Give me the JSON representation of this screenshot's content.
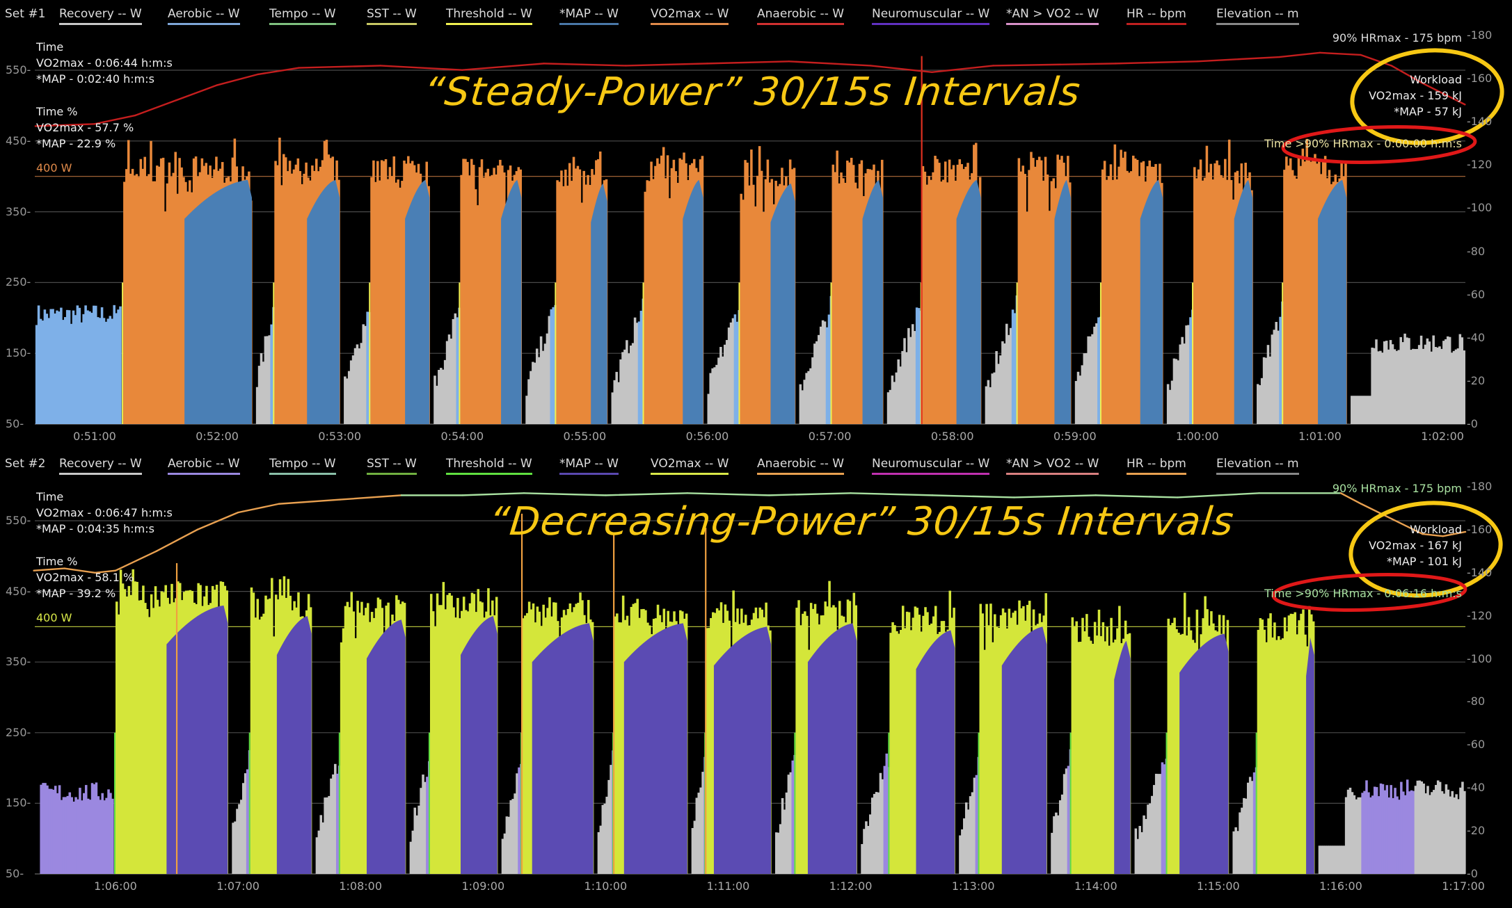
{
  "sets": [
    {
      "label": "Set #1",
      "legend": [
        {
          "label": "Recovery  -- W",
          "color": "#c8c8c8"
        },
        {
          "label": "Aerobic  -- W",
          "color": "#7ea6d8"
        },
        {
          "label": "Tempo  -- W",
          "color": "#7fc07f"
        },
        {
          "label": "SST  -- W",
          "color": "#c8c864"
        },
        {
          "label": "Threshold  -- W",
          "color": "#f0f050"
        },
        {
          "label": "*MAP  -- W",
          "color": "#4a78a8"
        },
        {
          "label": "VO2max  -- W",
          "color": "#e08a4a"
        },
        {
          "label": "Anaerobic  -- W",
          "color": "#d03030"
        },
        {
          "label": "Neuromuscular  -- W",
          "color": "#6030c0"
        },
        {
          "label": "*AN > VO2  -- W",
          "color": "#d890c8"
        },
        {
          "label": "HR  -- bpm",
          "color": "#c02020"
        },
        {
          "label": "Elevation  -- m",
          "color": "#888888"
        }
      ],
      "time_title": "Time",
      "time_vo2": "VO2max - 0:06:44 h:m:s",
      "time_map": "*MAP - 0:02:40 h:m:s",
      "pct_title": "Time %",
      "pct_vo2": "VO2max - 57.7 %",
      "pct_map": "*MAP - 22.9 %",
      "ref_label": "400 W",
      "hr_ref": "90% HRmax - 175 bpm",
      "workload_title": "Workload",
      "workload_vo2": "VO2max - 159 kJ",
      "workload_map": "*MAP - 57 kJ",
      "time_above": "Time >90% HRmax - 0:00:00 h:m:s",
      "annotation": "“Steady-Power” 30/15s Intervals",
      "colors": {
        "work": "#e8883a",
        "map": "#4a7fb5",
        "recovery": "#c4c4c4",
        "warmup": "#7eb0e8",
        "hr": "#c41e1e",
        "hr_high": "#c41e1e",
        "ref": "#e08a4a",
        "spike": "#e03020"
      },
      "chart_data": {
        "type": "bar",
        "x_range_sec": [
          3031,
          3731
        ],
        "x_ticks": [
          "0:51:00",
          "0:52:00",
          "0:53:00",
          "0:54:00",
          "0:55:00",
          "0:56:00",
          "0:57:00",
          "0:58:00",
          "0:59:00",
          "1:00:00",
          "1:01:00",
          "1:02:00"
        ],
        "y_ticks": [
          "550",
          "450",
          "350",
          "250",
          "150",
          "50"
        ],
        "y_range": [
          50,
          550
        ],
        "hr_ticks": [
          "180",
          "160",
          "140",
          "120",
          "100",
          "80",
          "60",
          "40",
          "20",
          "0"
        ],
        "hr_range": [
          0,
          180
        ],
        "warmup": {
          "start": 3031,
          "end": 3073,
          "power": 205
        },
        "intervals": [
          {
            "start": 3074,
            "map_start": 3104,
            "end": 3137,
            "power": 410
          },
          {
            "start": 3148,
            "map_start": 3164,
            "end": 3180,
            "power": 410
          },
          {
            "start": 3195,
            "map_start": 3212,
            "end": 3224,
            "power": 410
          },
          {
            "start": 3239,
            "map_start": 3259,
            "end": 3269,
            "power": 410
          },
          {
            "start": 3286,
            "map_start": 3303,
            "end": 3311,
            "power": 405
          },
          {
            "start": 3329,
            "map_start": 3348,
            "end": 3358,
            "power": 410
          },
          {
            "start": 3376,
            "map_start": 3391,
            "end": 3403,
            "power": 405
          },
          {
            "start": 3421,
            "map_start": 3436,
            "end": 3446,
            "power": 410
          },
          {
            "start": 3465,
            "map_start": 3482,
            "end": 3494,
            "power": 410
          },
          {
            "start": 3512,
            "map_start": 3530,
            "end": 3538,
            "power": 410
          },
          {
            "start": 3553,
            "map_start": 3572,
            "end": 3583,
            "power": 410
          },
          {
            "start": 3598,
            "map_start": 3618,
            "end": 3627,
            "power": 410
          },
          {
            "start": 3642,
            "map_start": 3659,
            "end": 3673,
            "power": 410
          }
        ],
        "cooldown_power": 165,
        "spikes": [
          [
            3465,
            570
          ]
        ],
        "hr": [
          [
            3031,
            138
          ],
          [
            3060,
            139
          ],
          [
            3080,
            143
          ],
          [
            3100,
            150
          ],
          [
            3120,
            157
          ],
          [
            3140,
            162
          ],
          [
            3160,
            165
          ],
          [
            3200,
            166
          ],
          [
            3240,
            164
          ],
          [
            3280,
            167
          ],
          [
            3320,
            166
          ],
          [
            3360,
            167
          ],
          [
            3400,
            168
          ],
          [
            3440,
            166
          ],
          [
            3470,
            163
          ],
          [
            3500,
            166
          ],
          [
            3560,
            167
          ],
          [
            3600,
            168
          ],
          [
            3640,
            170
          ],
          [
            3660,
            172
          ],
          [
            3680,
            171
          ],
          [
            3695,
            166
          ],
          [
            3710,
            158
          ],
          [
            3731,
            148
          ]
        ]
      }
    },
    {
      "label": "Set #2",
      "legend": [
        {
          "label": "Recovery  -- W",
          "color": "#c8c8c8"
        },
        {
          "label": "Aerobic  -- W",
          "color": "#9a88e0"
        },
        {
          "label": "Tempo  -- W",
          "color": "#8ac0a8"
        },
        {
          "label": "SST  -- W",
          "color": "#70b040"
        },
        {
          "label": "Threshold  -- W",
          "color": "#60e040"
        },
        {
          "label": "*MAP  -- W",
          "color": "#5a48b0"
        },
        {
          "label": "VO2max  -- W",
          "color": "#d8e848"
        },
        {
          "label": "Anaerobic  -- W",
          "color": "#e8a050"
        },
        {
          "label": "Neuromuscular  -- W",
          "color": "#c030b0"
        },
        {
          "label": "*AN > VO2  -- W",
          "color": "#d88080"
        },
        {
          "label": "HR  -- bpm",
          "color": "#e8a050"
        },
        {
          "label": "Elevation  -- m",
          "color": "#888888"
        }
      ],
      "time_title": "Time",
      "time_vo2": "VO2max - 0:06:47 h:m:s",
      "time_map": "*MAP - 0:04:35 h:m:s",
      "pct_title": "Time %",
      "pct_vo2": "VO2max - 58.1 %",
      "pct_map": "*MAP - 39.2 %",
      "ref_label": "400 W",
      "hr_ref": "90% HRmax - 175 bpm",
      "workload_title": "Workload",
      "workload_vo2": "VO2max - 167 kJ",
      "workload_map": "*MAP - 101 kJ",
      "time_above": "Time >90% HRmax - 0:06:16 h:m:s",
      "annotation": "“Decreasing-Power” 30/15s Intervals",
      "colors": {
        "work": "#d4e63a",
        "map": "#5b4bb3",
        "recovery": "#c4c4c4",
        "warmup": "#9b88e0",
        "hr": "#e8a050",
        "hr_high": "#a8e0a0",
        "ref": "#d8e848",
        "spike": "#f0a040"
      },
      "chart_data": {
        "type": "bar",
        "x_range_sec": [
          3920,
          4621
        ],
        "x_ticks": [
          "1:06:00",
          "1:07:00",
          "1:08:00",
          "1:09:00",
          "1:10:00",
          "1:11:00",
          "1:12:00",
          "1:13:00",
          "1:14:00",
          "1:15:00",
          "1:16:00",
          "1:17:00"
        ],
        "y_ticks": [
          "550",
          "450",
          "350",
          "250",
          "150",
          "50"
        ],
        "y_range": [
          50,
          550
        ],
        "hr_ticks": [
          "180",
          "160",
          "140",
          "120",
          "100",
          "80",
          "60",
          "40",
          "20",
          "0"
        ],
        "hr_range": [
          0,
          180
        ],
        "warmup": {
          "start": 3923,
          "end": 3959,
          "power": 165
        },
        "intervals": [
          {
            "start": 3960,
            "map_start": 3985,
            "end": 4015,
            "power": 445
          },
          {
            "start": 4026,
            "map_start": 4039,
            "end": 4056,
            "power": 430
          },
          {
            "start": 4070,
            "map_start": 4083,
            "end": 4102,
            "power": 425
          },
          {
            "start": 4114,
            "map_start": 4129,
            "end": 4147,
            "power": 430
          },
          {
            "start": 4159,
            "map_start": 4164,
            "end": 4194,
            "power": 420
          },
          {
            "start": 4204,
            "map_start": 4209,
            "end": 4240,
            "power": 420
          },
          {
            "start": 4249,
            "map_start": 4253,
            "end": 4281,
            "power": 415
          },
          {
            "start": 4293,
            "map_start": 4299,
            "end": 4323,
            "power": 420
          },
          {
            "start": 4339,
            "map_start": 4352,
            "end": 4371,
            "power": 410
          },
          {
            "start": 4383,
            "map_start": 4394,
            "end": 4416,
            "power": 415
          },
          {
            "start": 4428,
            "map_start": 4449,
            "end": 4457,
            "power": 395
          },
          {
            "start": 4475,
            "map_start": 4481,
            "end": 4505,
            "power": 405
          },
          {
            "start": 4519,
            "map_start": 4543,
            "end": 4547,
            "power": 400
          }
        ],
        "cooldown_power": 170,
        "spikes": [
          [
            3990,
            490
          ],
          [
            4159,
            560
          ],
          [
            4204,
            530
          ],
          [
            4249,
            540
          ]
        ],
        "hr": [
          [
            3920,
            141
          ],
          [
            3935,
            142
          ],
          [
            3950,
            140
          ],
          [
            3960,
            141
          ],
          [
            3980,
            150
          ],
          [
            4000,
            160
          ],
          [
            4020,
            168
          ],
          [
            4040,
            172
          ],
          [
            4070,
            174
          ],
          [
            4100,
            176
          ],
          [
            4130,
            176
          ],
          [
            4160,
            177
          ],
          [
            4200,
            176
          ],
          [
            4240,
            177
          ],
          [
            4280,
            176
          ],
          [
            4320,
            177
          ],
          [
            4360,
            176
          ],
          [
            4400,
            175
          ],
          [
            4440,
            176
          ],
          [
            4480,
            175
          ],
          [
            4520,
            177
          ],
          [
            4560,
            177
          ],
          [
            4570,
            172
          ],
          [
            4585,
            165
          ],
          [
            4600,
            158
          ],
          [
            4610,
            157
          ],
          [
            4621,
            159
          ]
        ]
      }
    }
  ]
}
